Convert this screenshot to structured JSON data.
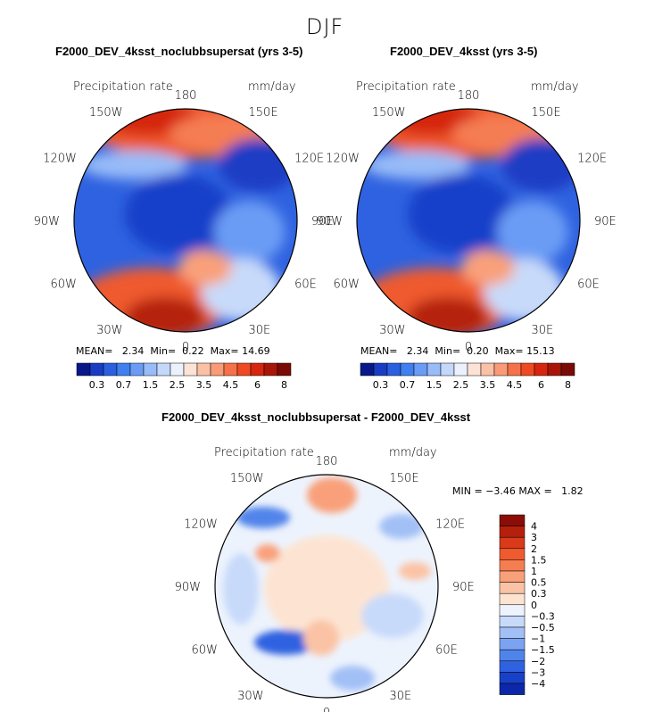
{
  "season_title": "DJF",
  "panels": [
    {
      "title": "F2000_DEV_4ksst_noclubbsupersat (yrs 3-5)",
      "variable": "Precipitation rate",
      "units": "mm/day",
      "stats": {
        "mean_label": "MEAN=",
        "mean": "2.34",
        "min_label": "Min=",
        "min": "0.22",
        "max_label": "Max=",
        "max": "14.69"
      }
    },
    {
      "title": "F2000_DEV_4ksst (yrs 3-5)",
      "variable": "Precipitation rate",
      "units": "mm/day",
      "stats": {
        "mean_label": "MEAN=",
        "mean": "2.34",
        "min_label": "Min=",
        "min": "0.20",
        "max_label": "Max=",
        "max": "15.13"
      }
    },
    {
      "title": "F2000_DEV_4ksst_noclubbsupersat - F2000_DEV_4ksst",
      "variable": "Precipitation rate",
      "units": "mm/day",
      "stats": {
        "min_label": "MIN =",
        "min": "−3.46",
        "max_label": "MAX =",
        "max": "1.82"
      }
    }
  ],
  "longitude_labels": [
    "180",
    "150E",
    "120E",
    "90E",
    "60E",
    "30E",
    "0",
    "30W",
    "60W",
    "90W",
    "120W",
    "150W"
  ],
  "colorbar_top": {
    "tick_labels": [
      "0.3",
      "0.7",
      "1.5",
      "2.5",
      "3.5",
      "4.5",
      "6",
      "8"
    ],
    "colors": [
      "#08188a",
      "#1a3cc4",
      "#2b5fe0",
      "#3f7ff0",
      "#6a9cf5",
      "#98bcf8",
      "#c3d8fb",
      "#ecf2fd",
      "#fde3d6",
      "#fbc1a6",
      "#f99b77",
      "#f5714a",
      "#ef4a22",
      "#d6260f",
      "#a81608",
      "#7a0a05"
    ]
  },
  "colorbar_diff": {
    "tick_labels": [
      "4",
      "3",
      "2",
      "1.5",
      "1",
      "0.5",
      "0.3",
      "0",
      "−0.3",
      "−0.5",
      "−1",
      "−1.5",
      "−2",
      "−3",
      "−4"
    ],
    "colors": [
      "#8c0d07",
      "#b5200d",
      "#d93a19",
      "#ef5a2f",
      "#f57d52",
      "#f9a07a",
      "#fbc3a5",
      "#fde4d2",
      "#edf3fd",
      "#c8dafa",
      "#a2c0f6",
      "#7aa3f1",
      "#5184ea",
      "#2f62e0",
      "#1840c9",
      "#0c28a8"
    ]
  }
}
